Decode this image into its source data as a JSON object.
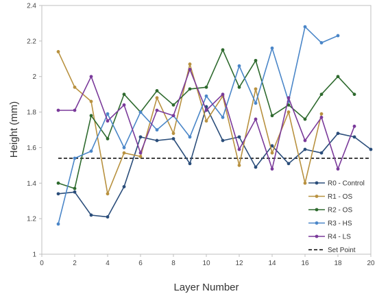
{
  "chart_data": {
    "type": "line",
    "title": "",
    "xlabel": "Layer Number",
    "ylabel": "Height (mm)",
    "xlim": [
      0,
      20
    ],
    "ylim": [
      1,
      2.4
    ],
    "xticks": [
      "0",
      "2",
      "4",
      "6",
      "8",
      "10",
      "12",
      "14",
      "16",
      "18",
      "20"
    ],
    "yticks": [
      "1",
      "1.2",
      "1.4",
      "1.6",
      "1.8",
      "2",
      "2.2",
      "2.4"
    ],
    "grid": false,
    "legend_position": "bottom-right",
    "series": [
      {
        "name": "R0 - Control",
        "color": "#2a4d7a",
        "x": [
          1,
          2,
          3,
          4,
          5,
          6,
          7,
          8,
          9,
          10,
          11,
          12,
          13,
          14,
          15,
          16,
          17,
          18,
          19,
          20
        ],
        "y": [
          1.34,
          1.35,
          1.22,
          1.21,
          1.38,
          1.66,
          1.64,
          1.65,
          1.51,
          1.83,
          1.64,
          1.66,
          1.49,
          1.61,
          1.51,
          1.59,
          1.57,
          1.68,
          1.66,
          1.59
        ]
      },
      {
        "name": "R1 - OS",
        "color": "#b8913f",
        "x": [
          1,
          2,
          3,
          4,
          5,
          6,
          7,
          8,
          9,
          10,
          11,
          12,
          13,
          14,
          15,
          16,
          17
        ],
        "y": [
          2.14,
          1.94,
          1.86,
          1.34,
          1.57,
          1.55,
          1.88,
          1.68,
          2.07,
          1.75,
          1.89,
          1.5,
          1.93,
          1.57,
          1.8,
          1.4,
          1.79
        ]
      },
      {
        "name": "R2 - OS",
        "color": "#2e6a2e",
        "x": [
          1,
          2,
          3,
          4,
          5,
          6,
          7,
          8,
          9,
          10,
          11,
          12,
          13,
          14,
          15,
          16,
          17,
          18,
          19
        ],
        "y": [
          1.4,
          1.37,
          1.78,
          1.65,
          1.9,
          1.8,
          1.92,
          1.84,
          1.93,
          1.94,
          2.15,
          1.94,
          2.09,
          1.78,
          1.84,
          1.76,
          1.9,
          2.0,
          1.9
        ]
      },
      {
        "name": "R3 - HS",
        "color": "#4a86c8",
        "x": [
          1,
          2,
          3,
          4,
          5,
          6,
          7,
          8,
          9,
          10,
          11,
          12,
          13,
          14,
          15,
          16,
          17,
          18
        ],
        "y": [
          1.17,
          1.54,
          1.58,
          1.79,
          1.6,
          1.8,
          1.7,
          1.78,
          1.66,
          1.89,
          1.77,
          2.06,
          1.85,
          2.16,
          1.86,
          2.28,
          2.19,
          2.23
        ]
      },
      {
        "name": "R4 - LS",
        "color": "#7a3a9a",
        "x": [
          1,
          2,
          3,
          4,
          5,
          6,
          7,
          8,
          9,
          10,
          11,
          12,
          13,
          14,
          15,
          16,
          17,
          18,
          19
        ],
        "y": [
          1.81,
          1.81,
          2.0,
          1.75,
          1.84,
          1.57,
          1.81,
          1.78,
          2.04,
          1.81,
          1.9,
          1.59,
          1.76,
          1.48,
          1.88,
          1.64,
          1.77,
          1.48,
          1.72
        ]
      }
    ],
    "set_point": {
      "name": "Set Point",
      "value": 1.54,
      "color": "#000000"
    }
  }
}
